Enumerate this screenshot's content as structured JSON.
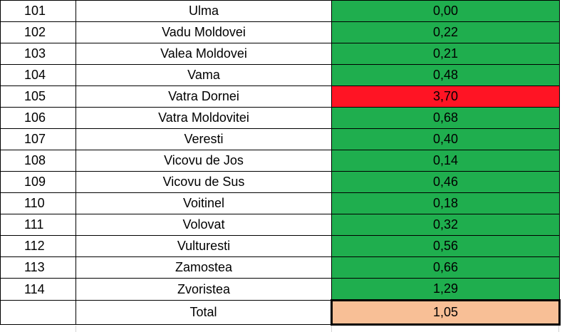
{
  "colors": {
    "ok": "#1fae4e",
    "bad": "#ff1424",
    "total": "#f8bf96"
  },
  "rows": [
    {
      "num": "101",
      "name": "Ulma",
      "value": "0,00",
      "status": "ok"
    },
    {
      "num": "102",
      "name": "Vadu Moldovei",
      "value": "0,22",
      "status": "ok"
    },
    {
      "num": "103",
      "name": "Valea Moldovei",
      "value": "0,21",
      "status": "ok"
    },
    {
      "num": "104",
      "name": "Vama",
      "value": "0,48",
      "status": "ok"
    },
    {
      "num": "105",
      "name": "Vatra Dornei",
      "value": "3,70",
      "status": "bad"
    },
    {
      "num": "106",
      "name": "Vatra Moldovitei",
      "value": "0,68",
      "status": "ok"
    },
    {
      "num": "107",
      "name": "Veresti",
      "value": "0,40",
      "status": "ok"
    },
    {
      "num": "108",
      "name": "Vicovu de Jos",
      "value": "0,14",
      "status": "ok"
    },
    {
      "num": "109",
      "name": "Vicovu de Sus",
      "value": "0,46",
      "status": "ok"
    },
    {
      "num": "110",
      "name": "Voitinel",
      "value": "0,18",
      "status": "ok"
    },
    {
      "num": "111",
      "name": "Volovat",
      "value": "0,32",
      "status": "ok"
    },
    {
      "num": "112",
      "name": "Vulturesti",
      "value": "0,56",
      "status": "ok"
    },
    {
      "num": "113",
      "name": "Zamostea",
      "value": "0,66",
      "status": "ok"
    },
    {
      "num": "114",
      "name": "Zvoristea",
      "value": "1,29",
      "status": "ok"
    }
  ],
  "total": {
    "label": "Total",
    "value": "1,05"
  }
}
